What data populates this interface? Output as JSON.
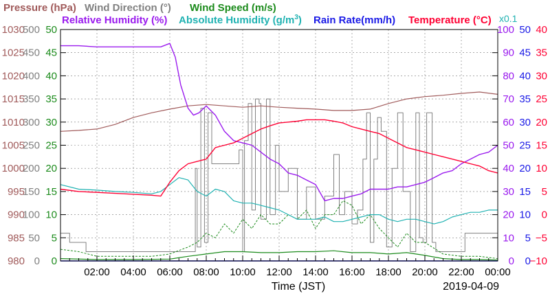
{
  "chart_data": {
    "type": "line",
    "date": "2019-04-09",
    "xlabel": "Time (JST)",
    "x_ticks": [
      "02:00",
      "04:00",
      "06:00",
      "08:00",
      "10:00",
      "12:00",
      "14:00",
      "16:00",
      "18:00",
      "20:00",
      "22:00",
      "00:00"
    ],
    "x_range_hours": [
      0,
      24
    ],
    "legend": {
      "pressure": {
        "label": "Pressure (hPa)",
        "color": "#a05a5a"
      },
      "wind_direction": {
        "label": "Wind Direction (°)",
        "color": "#808080"
      },
      "wind_speed": {
        "label": "Wind Speed (m/s)",
        "color": "#1a8a1a"
      },
      "relative_humidity": {
        "label": "Relative Humidity (%)",
        "color": "#9a1aee"
      },
      "absolute_humidity": {
        "label": "Absolute Humidity (g/m",
        "sup": "3",
        "close": ")",
        "color": "#20b2b2"
      },
      "rain_rate": {
        "label": "Rain Rate(mm/h)",
        "color": "#1a1ae6"
      },
      "temperature": {
        "label": "Temperature (°C)",
        "color": "#ff0033"
      }
    },
    "axis_multiplier": "x0.1",
    "axes": {
      "pressure": {
        "range": [
          980,
          1030
        ],
        "ticks": [
          "1030",
          "1025",
          "1020",
          "1015",
          "1010",
          "1005",
          "1000",
          "995",
          "990",
          "985",
          "980"
        ]
      },
      "wind_direction": {
        "range": [
          0,
          500
        ],
        "ticks": [
          "500",
          "450",
          "400",
          "350",
          "300",
          "250",
          "200",
          "150",
          "100",
          "50",
          "0"
        ]
      },
      "wind_speed": {
        "range": [
          0,
          50
        ],
        "ticks": [
          "50",
          "45",
          "40",
          "35",
          "30",
          "25",
          "20",
          "15",
          "10",
          "5",
          "0"
        ]
      },
      "relative_humidity": {
        "range": [
          0,
          100
        ],
        "ticks": [
          "100",
          "90",
          "80",
          "70",
          "60",
          "50",
          "40",
          "30",
          "20",
          "10",
          "0"
        ]
      },
      "rain_rate": {
        "range": [
          0,
          50
        ],
        "ticks": [
          "50",
          "45",
          "40",
          "35",
          "30",
          "25",
          "20",
          "15",
          "10",
          "5",
          "0"
        ]
      },
      "temperature": {
        "range": [
          -10,
          40
        ],
        "ticks": [
          "40",
          "35",
          "30",
          "25",
          "20",
          "15",
          "10",
          "5",
          "0",
          "−5",
          "−10"
        ]
      }
    },
    "series": {
      "pressure_hpa": {
        "x": [
          0,
          1,
          2,
          3,
          4,
          5,
          6,
          7,
          8,
          9,
          10,
          11,
          12,
          13,
          14,
          15,
          16,
          17,
          18,
          19,
          20,
          21,
          22,
          23,
          24
        ],
        "y": [
          1008.0,
          1008.2,
          1008.5,
          1009.5,
          1011.0,
          1012.0,
          1012.8,
          1013.5,
          1013.8,
          1013.5,
          1013.2,
          1013.5,
          1013.2,
          1013.0,
          1012.8,
          1012.5,
          1012.5,
          1012.8,
          1014.0,
          1015.0,
          1015.5,
          1015.8,
          1016.2,
          1016.5,
          1016.0
        ]
      },
      "relative_humidity_pct": {
        "x": [
          0,
          1,
          2,
          3,
          4,
          5,
          5.5,
          6,
          6.3,
          6.6,
          7,
          7.3,
          7.6,
          8,
          8.5,
          9,
          9.5,
          10,
          10.5,
          11,
          11.5,
          12,
          12.5,
          13,
          13.5,
          14,
          14.5,
          15,
          15.5,
          16,
          16.5,
          17,
          17.5,
          18,
          18.5,
          19,
          19.5,
          20,
          20.5,
          21,
          21.5,
          22,
          22.5,
          23,
          23.5,
          24
        ],
        "y": [
          93,
          93,
          92.5,
          92.5,
          92.5,
          92.5,
          92.5,
          94,
          88,
          76,
          66,
          63,
          64,
          67,
          63,
          56,
          52,
          51,
          50,
          47,
          44,
          42,
          38,
          37,
          35,
          33,
          26,
          27,
          27,
          28,
          29,
          31,
          31,
          31,
          32,
          32,
          33,
          34,
          36,
          38,
          39,
          42,
          44,
          46,
          47,
          50
        ]
      },
      "absolute_humidity_x10": {
        "x": [
          0,
          1,
          2,
          3,
          4,
          5,
          5.5,
          6,
          6.5,
          7,
          7.5,
          8,
          8.5,
          9,
          9.5,
          10,
          10.5,
          11,
          11.5,
          12,
          12.5,
          13,
          13.5,
          14,
          14.5,
          15,
          15.5,
          16,
          16.5,
          17,
          17.5,
          18,
          18.5,
          19,
          19.5,
          20,
          20.5,
          21,
          21.5,
          22,
          22.5,
          23,
          23.5,
          24
        ],
        "y": [
          16.5,
          15.5,
          15.3,
          15.0,
          14.8,
          14.5,
          15.0,
          16.5,
          18.0,
          17.5,
          15.0,
          14.0,
          15.5,
          15.0,
          13.0,
          12.5,
          12.5,
          12.0,
          11.5,
          11.0,
          10.0,
          9.0,
          9.0,
          9.0,
          9.5,
          8.5,
          8.5,
          9.0,
          9.5,
          10.0,
          10.0,
          9.0,
          8.5,
          9.0,
          9.0,
          8.5,
          8.0,
          8.5,
          9.5,
          10.0,
          10.5,
          10.5,
          11.0,
          11.0
        ]
      },
      "temperature_c": {
        "x": [
          0,
          1,
          2,
          3,
          4,
          5,
          5.5,
          6,
          6.5,
          7,
          7.5,
          8,
          8.5,
          9,
          9.5,
          10,
          10.5,
          11,
          11.5,
          12,
          12.5,
          13,
          13.5,
          14,
          14.5,
          15,
          15.5,
          16,
          16.5,
          17,
          17.5,
          18,
          18.5,
          19,
          19.5,
          20,
          20.5,
          21,
          21.5,
          22,
          22.5,
          23,
          23.5,
          24
        ],
        "y": [
          5.5,
          5.0,
          4.8,
          4.6,
          4.4,
          4.2,
          4.0,
          7.0,
          9.5,
          11.0,
          11.5,
          12.0,
          14.5,
          15.0,
          15.5,
          16.5,
          17.5,
          18.5,
          19.2,
          19.8,
          20.0,
          20.2,
          20.5,
          20.5,
          20.5,
          20.2,
          19.8,
          19.0,
          18.5,
          18.0,
          17.5,
          16.5,
          15.5,
          14.5,
          14.0,
          13.5,
          13.0,
          12.5,
          12.0,
          11.5,
          11.0,
          10.5,
          9.5,
          9.0
        ]
      },
      "wind_direction_deg": {
        "x": [
          0,
          0.4,
          0.5,
          1.3,
          1.4,
          7.2,
          7.4,
          7.5,
          7.7,
          7.9,
          8.1,
          8.3,
          9.8,
          10,
          10.1,
          10.3,
          10.5,
          10.7,
          10.9,
          11.0,
          11.3,
          11.5,
          11.8,
          12,
          12.5,
          13,
          13.5,
          14,
          14.5,
          15,
          15.3,
          15.6,
          16,
          16.3,
          16.6,
          16.8,
          17,
          17.2,
          17.4,
          17.6,
          17.9,
          18.2,
          18.5,
          18.8,
          19.2,
          19.5,
          19.7,
          19.9,
          20.1,
          20.4,
          20.6,
          22,
          22.2,
          24
        ],
        "y": [
          60,
          60,
          40,
          40,
          20,
          20,
          200,
          30,
          330,
          40,
          320,
          210,
          240,
          20,
          260,
          340,
          110,
          350,
          340,
          90,
          350,
          100,
          250,
          150,
          200,
          90,
          160,
          90,
          140,
          230,
          100,
          150,
          80,
          110,
          220,
          320,
          40,
          220,
          310,
          280,
          30,
          200,
          320,
          150,
          20,
          320,
          50,
          40,
          320,
          40,
          20,
          20,
          60,
          60
        ]
      },
      "wind_speed_avg_ms": {
        "x": [
          0,
          2,
          4,
          6,
          7,
          8,
          9,
          10,
          11,
          12,
          13,
          14,
          15,
          16,
          17,
          18,
          19,
          20,
          21,
          22,
          23,
          24
        ],
        "y": [
          0.5,
          0.3,
          0.3,
          0.4,
          1.0,
          1.5,
          2.0,
          2.0,
          1.8,
          1.8,
          2.0,
          2.0,
          2.2,
          1.8,
          1.8,
          1.5,
          1.8,
          1.2,
          0.5,
          0.3,
          0.3,
          0.2
        ]
      },
      "wind_speed_gust_ms": {
        "x": [
          0,
          1,
          2,
          3,
          4,
          5,
          6,
          7,
          7.5,
          8,
          8.5,
          9,
          9.5,
          10,
          10.5,
          11,
          11.5,
          12,
          12.5,
          13,
          13.5,
          14,
          14.5,
          15,
          15.5,
          16,
          16.5,
          17,
          17.5,
          18,
          18.5,
          19,
          19.5,
          20,
          21,
          22,
          23,
          24
        ],
        "y": [
          2.5,
          2.0,
          1.0,
          1.0,
          1.0,
          1.0,
          1.5,
          3,
          4,
          6,
          5,
          8,
          6,
          9,
          7,
          10,
          8,
          8,
          10,
          9,
          11,
          7,
          10,
          10,
          13,
          12,
          8,
          10,
          7,
          5,
          3,
          6,
          4,
          4,
          1.5,
          1.0,
          1.0,
          0.5
        ]
      },
      "rain_rate_mmh": {
        "x": [
          0,
          24
        ],
        "y": [
          0,
          0
        ]
      }
    }
  }
}
